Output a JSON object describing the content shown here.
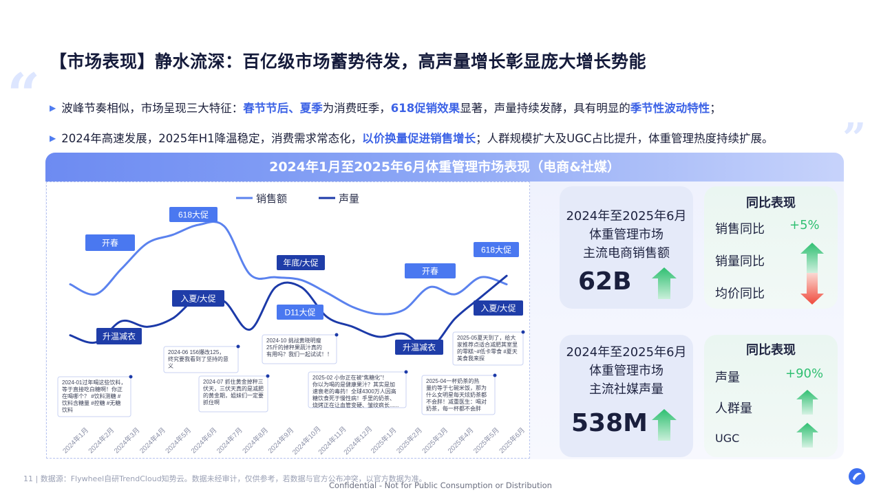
{
  "slide": {
    "title": "【市场表现】静水流深：百亿级市场蓄势待发，高声量增长彰显庞大增长势能",
    "bullet1": {
      "s1": "波峰节奏相似，市场呈现三大特征：",
      "h1": "春节节后、夏季",
      "s2": "为消费旺季，",
      "h2": "618促销效果",
      "s3": "显著，声量持续发酵，具有明显的",
      "h3": "季节性波动特性",
      "s4": "；"
    },
    "bullet2": {
      "s1": "2024年高速发展，2025年H1降温稳定，消费需求常态化，",
      "h1": "以价换量促进销售增长",
      "s2": "；人群规模扩大及UGC占比提升，体重管理热度持续扩展。"
    },
    "panel_title": "2024年1月至2025年6月体重管理市场表现（电商&社媒）",
    "footer": "11  |  数据源：Flywheel自研TrendCloud知势云。数据未经审计，仅供参考，若数据与官方公布冲突，以官方数据为准。",
    "confidential": "Confidential - Not for Public Consumption or Distribution"
  },
  "colors": {
    "sales_line": "#5b82ee",
    "volume_line": "#1c3aa8",
    "tag_bg": "#4a78f0",
    "tag_dark": "#1f3da8",
    "green": "#2fbf71",
    "red": "#ef4a3c"
  },
  "chart_data": {
    "type": "line",
    "legend": [
      "销售额",
      "声量"
    ],
    "x": [
      "2024年1月",
      "2024年2月",
      "2024年3月",
      "2024年4月",
      "2024年5月",
      "2024年6月",
      "2024年7月",
      "2024年8月",
      "2024年9月",
      "2024年10月",
      "2024年11月",
      "2024年12月",
      "2025年1月",
      "2025年2月",
      "2025年3月",
      "2025年4月",
      "2025年5月",
      "2025年6月"
    ],
    "series": [
      {
        "name": "销售额",
        "values": [
          0.58,
          0.51,
          0.69,
          0.87,
          0.93,
          1.0,
          0.99,
          0.65,
          0.63,
          0.61,
          0.52,
          0.42,
          0.37,
          0.4,
          0.56,
          0.51,
          0.63,
          0.58
        ]
      },
      {
        "name": "声量",
        "values": [
          0.22,
          0.17,
          0.32,
          0.28,
          0.34,
          0.49,
          0.46,
          0.26,
          0.56,
          0.56,
          0.35,
          0.28,
          0.21,
          0.23,
          0.13,
          0.34,
          0.49,
          0.64
        ]
      }
    ],
    "tags": [
      {
        "text": "开春",
        "style": "blue"
      },
      {
        "text": "618大促",
        "style": "blue"
      },
      {
        "text": "入夏/大促",
        "style": "dark"
      },
      {
        "text": "升温减衣",
        "style": "dark"
      },
      {
        "text": "年底/大促",
        "style": "dark"
      },
      {
        "text": "D11大促",
        "style": "blue"
      },
      {
        "text": "开春",
        "style": "blue"
      },
      {
        "text": "升温减衣",
        "style": "dark"
      },
      {
        "text": "618大促",
        "style": "blue"
      },
      {
        "text": "入夏/大促",
        "style": "dark"
      }
    ],
    "notes": [
      {
        "lines": [
          "2024-01过年喝这些饮料，",
          "等于直接吃白糖啊！你正",
          "在喝哪个？ #饮料测糖 #",
          "饮料含糖量 #控糖 #无糖",
          "饮料"
        ]
      },
      {
        "lines": [
          "2024-06 156爆改125，",
          "终究要我看到了坚持的意",
          "义"
        ]
      },
      {
        "lines": [
          "2024-07 抓住黄金掉秤三",
          "伏天，三伏天真的是减肥",
          "的黄金期，姐妹们一定要",
          "抓住啊"
        ]
      },
      {
        "lines": [
          "2024-10 挑战黄晓明瘦",
          "25斤的掉秤果蔬汁真的",
          "有用吗？我们一起试试！！"
        ]
      },
      {
        "lines": [
          "2025-02 小你正在被“焦糖化”！",
          "你以为喝的是健康果汁？其实是加",
          "速衰老的毒药！全球4300万人因高",
          "糖饮食死于慢性病！手里的奶茶、",
          "烧烤正在让血管变硬、皱纹疯长......"
        ]
      },
      {
        "lines": [
          "2025-04一杯奶茶的热",
          "量约等于七碗米饭，那为",
          "什么女明星每天炫奶茶都",
          "不会胖！减重医生：喝对",
          "奶茶，每一杯都不会胖"
        ]
      },
      {
        "lines": [
          "2025-05夏天到了，给大",
          "家推荐点适合减肥其室里",
          "的零糕~#低卡零食 #夏天",
          "美食我来探"
        ]
      }
    ]
  },
  "ecommerce": {
    "title_line1": "2024年至2025年6月",
    "title_line2": "体重管理市场",
    "title_line3": "主流电商销售额",
    "value": "62B",
    "yoy": {
      "title": "同比表现",
      "rows": [
        {
          "label": "销售同比",
          "value": "+5%",
          "trend": "up"
        },
        {
          "label": "销量同比",
          "value": "",
          "trend": "up"
        },
        {
          "label": "均价同比",
          "value": "",
          "trend": "down"
        }
      ]
    }
  },
  "social": {
    "title_line1": "2024年至2025年6月",
    "title_line2": "体重管理市场",
    "title_line3": "主流社媒声量",
    "value": "538M",
    "yoy": {
      "title": "同比表现",
      "rows": [
        {
          "label": "声量",
          "value": "+90%",
          "trend": "up"
        },
        {
          "label": "人群量",
          "value": "",
          "trend": "up"
        },
        {
          "label": "UGC",
          "value": "",
          "trend": "up"
        }
      ]
    }
  }
}
